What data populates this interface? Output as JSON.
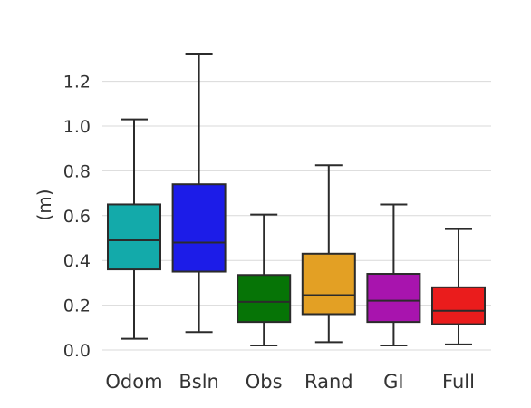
{
  "chart_data": {
    "type": "box",
    "title": "",
    "xlabel": "",
    "ylabel": "(m)",
    "ylim": [
      0,
      1.3
    ],
    "yticks": [
      "0.0",
      "0.2",
      "0.4",
      "0.6",
      "0.8",
      "1.0",
      "1.2"
    ],
    "grid": "horizontal",
    "categories": [
      "Odom",
      "Bsln",
      "Obs",
      "Rand",
      "GI",
      "Full"
    ],
    "boxes": [
      {
        "name": "Odom",
        "color": "#13aaaa",
        "whisker_low": 0.05,
        "q1": 0.36,
        "median": 0.49,
        "q3": 0.65,
        "whisker_high": 1.03
      },
      {
        "name": "Bsln",
        "color": "#1c1ce8",
        "whisker_low": 0.08,
        "q1": 0.35,
        "median": 0.48,
        "q3": 0.74,
        "whisker_high": 1.32
      },
      {
        "name": "Obs",
        "color": "#067406",
        "whisker_low": 0.02,
        "q1": 0.125,
        "median": 0.215,
        "q3": 0.335,
        "whisker_high": 0.605
      },
      {
        "name": "Rand",
        "color": "#e3a024",
        "whisker_low": 0.035,
        "q1": 0.16,
        "median": 0.245,
        "q3": 0.43,
        "whisker_high": 0.825
      },
      {
        "name": "GI",
        "color": "#a814ae",
        "whisker_low": 0.02,
        "q1": 0.125,
        "median": 0.22,
        "q3": 0.34,
        "whisker_high": 0.65
      },
      {
        "name": "Full",
        "color": "#ea1c1c",
        "whisker_low": 0.025,
        "q1": 0.115,
        "median": 0.175,
        "q3": 0.28,
        "whisker_high": 0.54
      }
    ]
  }
}
